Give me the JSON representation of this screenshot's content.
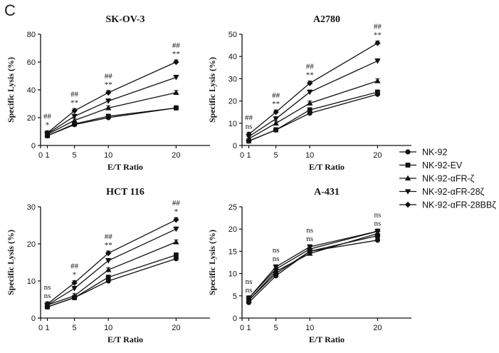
{
  "panel_label": "C",
  "chart_data": [
    {
      "type": "line",
      "title": "SK-OV-3",
      "xlabel": "E/T Ratio",
      "ylabel": "Specific Lysis (%)",
      "xlim": [
        0,
        25
      ],
      "ylim": [
        0,
        80
      ],
      "xticks": [
        0,
        1,
        5,
        10,
        20
      ],
      "yticks": [
        0,
        20,
        40,
        60,
        80
      ],
      "categories": [
        "1",
        "5",
        "10",
        "20"
      ],
      "series": [
        {
          "name": "NK-92",
          "values": [
            7,
            15,
            20,
            27
          ]
        },
        {
          "name": "NK-92-EV",
          "values": [
            7,
            15.5,
            21,
            27
          ]
        },
        {
          "name": "NK-92-αFR-ζ",
          "values": [
            8,
            18,
            27,
            38
          ]
        },
        {
          "name": "NK-92-αFR-28ζ",
          "values": [
            8.5,
            21,
            32,
            49
          ]
        },
        {
          "name": "NK-92-αFR-28BBζ",
          "values": [
            9,
            25,
            38,
            60
          ]
        }
      ],
      "annotations": [
        {
          "x": "1",
          "upper": "##",
          "lower": "*"
        },
        {
          "x": "5",
          "upper": "##",
          "lower": "**"
        },
        {
          "x": "10",
          "upper": "##",
          "lower": "**"
        },
        {
          "x": "20",
          "upper": "##",
          "lower": "**"
        }
      ]
    },
    {
      "type": "line",
      "title": "A2780",
      "xlabel": "E/T Ratio",
      "ylabel": "Specific Lysis (%)",
      "xlim": [
        0,
        25
      ],
      "ylim": [
        0,
        50
      ],
      "xticks": [
        0,
        1,
        5,
        10,
        20
      ],
      "yticks": [
        0,
        10,
        20,
        30,
        40,
        50
      ],
      "categories": [
        "1",
        "5",
        "10",
        "20"
      ],
      "series": [
        {
          "name": "NK-92",
          "values": [
            2,
            7,
            14.5,
            23
          ]
        },
        {
          "name": "NK-92-EV",
          "values": [
            2,
            7,
            16,
            24
          ]
        },
        {
          "name": "NK-92-αFR-ζ",
          "values": [
            3,
            10,
            19,
            29
          ]
        },
        {
          "name": "NK-92-αFR-28ζ",
          "values": [
            4,
            12,
            24,
            38
          ]
        },
        {
          "name": "NK-92-αFR-28BBζ",
          "values": [
            5,
            15,
            28,
            46
          ]
        }
      ],
      "annotations": [
        {
          "x": "1",
          "upper": "##",
          "lower": "ns"
        },
        {
          "x": "5",
          "upper": "##",
          "lower": "**"
        },
        {
          "x": "10",
          "upper": "##",
          "lower": "**"
        },
        {
          "x": "20",
          "upper": "##",
          "lower": "**"
        }
      ]
    },
    {
      "type": "line",
      "title": "HCT 116",
      "xlabel": "E/T Ratio",
      "ylabel": "Specific Lysis (%)",
      "xlim": [
        0,
        25
      ],
      "ylim": [
        0,
        30
      ],
      "xticks": [
        0,
        1,
        5,
        10,
        20
      ],
      "yticks": [
        0,
        10,
        20,
        30
      ],
      "categories": [
        "1",
        "5",
        "10",
        "20"
      ],
      "series": [
        {
          "name": "NK-92",
          "values": [
            3,
            5.5,
            10,
            16
          ]
        },
        {
          "name": "NK-92-EV",
          "values": [
            3,
            5.5,
            11,
            17
          ]
        },
        {
          "name": "NK-92-αFR-ζ",
          "values": [
            3.5,
            6,
            13,
            20.5
          ]
        },
        {
          "name": "NK-92-αFR-28ζ",
          "values": [
            3.5,
            8,
            15.5,
            24
          ]
        },
        {
          "name": "NK-92-αFR-28BBζ",
          "values": [
            3.8,
            9.5,
            17.5,
            26.5
          ]
        }
      ],
      "annotations": [
        {
          "x": "1",
          "upper": "ns",
          "lower": "ns"
        },
        {
          "x": "5",
          "upper": "##",
          "lower": "*"
        },
        {
          "x": "10",
          "upper": "##",
          "lower": "**"
        },
        {
          "x": "20",
          "upper": "##",
          "lower": "*"
        }
      ]
    },
    {
      "type": "line",
      "title": "A-431",
      "xlabel": "E/T Ratio",
      "ylabel": "Specific Lysis (%)",
      "xlim": [
        0,
        25
      ],
      "ylim": [
        0,
        25
      ],
      "xticks": [
        0,
        1,
        5,
        10,
        20
      ],
      "yticks": [
        0,
        5,
        10,
        15,
        20,
        25
      ],
      "categories": [
        "1",
        "5",
        "10",
        "20"
      ],
      "series": [
        {
          "name": "NK-92",
          "values": [
            3.5,
            9.5,
            15,
            17.5
          ]
        },
        {
          "name": "NK-92-EV",
          "values": [
            4,
            10,
            15,
            18.5
          ]
        },
        {
          "name": "NK-92-αFR-ζ",
          "values": [
            4,
            10.5,
            14.5,
            19
          ]
        },
        {
          "name": "NK-92-αFR-28ζ",
          "values": [
            4.5,
            11.5,
            16,
            19.5
          ]
        },
        {
          "name": "NK-92-αFR-28BBζ",
          "values": [
            4.5,
            11,
            15.5,
            19.5
          ]
        }
      ],
      "annotations": [
        {
          "x": "1",
          "upper": "ns",
          "lower": "ns"
        },
        {
          "x": "5",
          "upper": "ns",
          "lower": "ns"
        },
        {
          "x": "10",
          "upper": "ns",
          "lower": "ns"
        },
        {
          "x": "20",
          "upper": "ns",
          "lower": "ns"
        }
      ]
    }
  ],
  "legend": {
    "placement": "right",
    "entries": [
      {
        "label": "NK-92",
        "marker": "circle"
      },
      {
        "label": "NK-92-EV",
        "marker": "square"
      },
      {
        "label": "NK-92-αFR-ζ",
        "marker": "triangle-up"
      },
      {
        "label": "NK-92-αFR-28ζ",
        "marker": "triangle-down"
      },
      {
        "label": "NK-92-αFR-28BBζ",
        "marker": "diamond"
      }
    ]
  }
}
